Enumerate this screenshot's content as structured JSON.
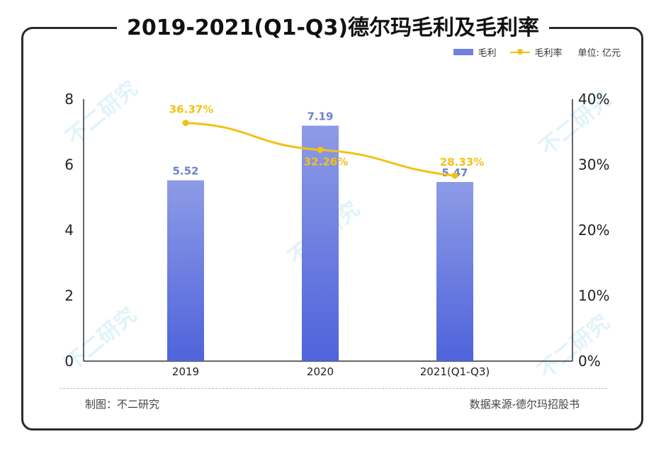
{
  "title": "2019-2021(Q1-Q3)德尔玛毛利及毛利率",
  "legend": {
    "bar_label": "毛利",
    "line_label": "毛利率",
    "unit": "单位: 亿元"
  },
  "footer": {
    "left": "制图：不二研究",
    "right": "数据来源-德尔玛招股书"
  },
  "watermark": "不二研究",
  "colors": {
    "bar_top": "#8d9be6",
    "bar_bottom": "#4f63db",
    "bar_label": "#6f82c9",
    "line": "#f3c116"
  },
  "chart_data": {
    "type": "bar",
    "categories": [
      "2019",
      "2020",
      "2021(Q1-Q3)"
    ],
    "series": [
      {
        "name": "毛利",
        "type": "bar",
        "axis": "left",
        "values": [
          5.52,
          7.19,
          5.47
        ]
      },
      {
        "name": "毛利率",
        "type": "line",
        "axis": "right",
        "values": [
          36.37,
          32.26,
          28.33
        ]
      }
    ],
    "bar_labels": [
      "5.52",
      "7.19",
      "5.47"
    ],
    "line_labels": [
      "36.37%",
      "32.26%",
      "28.33%"
    ],
    "left_axis": {
      "ylim": [
        0,
        8
      ],
      "ticks": [
        "0",
        "2",
        "4",
        "6",
        "8"
      ]
    },
    "right_axis": {
      "ylim": [
        0,
        40
      ],
      "ticks": [
        "0%",
        "10%",
        "20%",
        "30%",
        "40%"
      ]
    },
    "grid": false,
    "legend_position": "top-right"
  }
}
